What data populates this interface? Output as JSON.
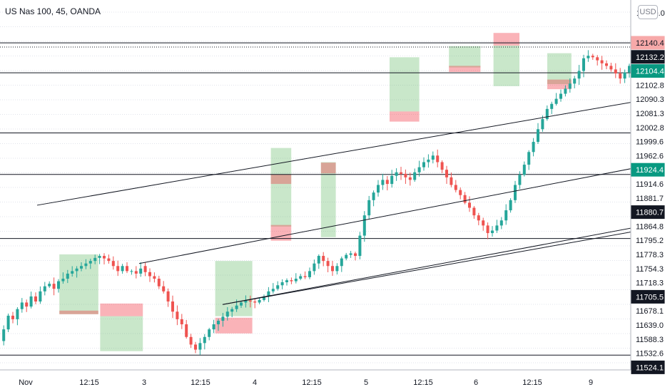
{
  "chart_data": {
    "type": "candlestick",
    "title": "US Nas 100, 45, OANDA",
    "currency": "USD",
    "x_ticks": [
      "Nov",
      "12:15",
      "3",
      "12:15",
      "4",
      "12:15",
      "5",
      "12:15",
      "6",
      "12:15",
      "9"
    ],
    "ylim": [
      11495,
      12225
    ],
    "y_ticks": [
      12200.0
    ],
    "price_labels": [
      {
        "value": 12140.4,
        "style": "sell"
      },
      {
        "value": 12132.2,
        "style": "last"
      },
      {
        "value": 12104.4,
        "style": "buy"
      },
      {
        "value": 12102.8,
        "style": "level"
      },
      {
        "value": 12090.3,
        "style": "level"
      },
      {
        "value": 12081.3,
        "style": "level"
      },
      {
        "value": 12002.8,
        "style": "level"
      },
      {
        "value": 11999.6,
        "style": "level"
      },
      {
        "value": 11962.6,
        "style": "level"
      },
      {
        "value": 11924.4,
        "style": "buy"
      },
      {
        "value": 11914.6,
        "style": "level"
      },
      {
        "value": 11881.7,
        "style": "level"
      },
      {
        "value": 11880.7,
        "style": "last"
      },
      {
        "value": 11864.8,
        "style": "level"
      },
      {
        "value": 11795.2,
        "style": "level"
      },
      {
        "value": 11778.3,
        "style": "level"
      },
      {
        "value": 11754.3,
        "style": "level"
      },
      {
        "value": 11718.3,
        "style": "level"
      },
      {
        "value": 11705.5,
        "style": "last"
      },
      {
        "value": 11678.1,
        "style": "level"
      },
      {
        "value": 11639.0,
        "style": "level"
      },
      {
        "value": 11588.3,
        "style": "level"
      },
      {
        "value": 11532.6,
        "style": "level"
      },
      {
        "value": 11524.1,
        "style": "last"
      }
    ],
    "horizontal_levels": [
      12140.4,
      12081.3,
      11962.6,
      11880.7,
      11754.3,
      11524.1
    ],
    "dotted_levels": [
      12132.2
    ],
    "channel_lines": [
      {
        "from": [
          2.0,
          11820
        ],
        "to": [
          72.0,
          12264
        ]
      },
      {
        "from": [
          7.5,
          11705
        ],
        "to": [
          85.0,
          12252
        ]
      },
      {
        "from": [
          12.0,
          11624
        ],
        "to": [
          88.0,
          12118
        ]
      },
      {
        "from": [
          12.0,
          11624
        ],
        "to": [
          92.0,
          12172
        ],
        "arrow": true
      }
    ],
    "zones": [
      {
        "x": [
          3.2,
          5.3
        ],
        "y": [
          11605,
          11723
        ],
        "kind": "profit"
      },
      {
        "x": [
          3.2,
          5.3
        ],
        "y": [
          11605,
          11612
        ],
        "kind": "loss"
      },
      {
        "x": [
          5.4,
          7.7
        ],
        "y": [
          11532,
          11601
        ],
        "kind": "profit"
      },
      {
        "x": [
          5.4,
          7.7
        ],
        "y": [
          11601,
          11626
        ],
        "kind": "loss"
      },
      {
        "x": [
          11.6,
          13.6
        ],
        "y": [
          11601,
          11710
        ],
        "kind": "profit"
      },
      {
        "x": [
          11.6,
          13.6
        ],
        "y": [
          11567,
          11598
        ],
        "kind": "loss"
      },
      {
        "x": [
          14.6,
          15.7
        ],
        "y": [
          11778,
          11933
        ],
        "kind": "profit"
      },
      {
        "x": [
          14.6,
          15.7
        ],
        "y": [
          11750,
          11781
        ],
        "kind": "loss"
      },
      {
        "x": [
          14.6,
          15.7
        ],
        "y": [
          11862,
          11881
        ],
        "kind": "loss"
      },
      {
        "x": [
          17.3,
          18.1
        ],
        "y": [
          11757,
          11905
        ],
        "kind": "profit"
      },
      {
        "x": [
          17.3,
          18.1
        ],
        "y": [
          11883,
          11904
        ],
        "kind": "loss"
      },
      {
        "x": [
          21.0,
          22.6
        ],
        "y": [
          12005,
          12112
        ],
        "kind": "profit"
      },
      {
        "x": [
          21.0,
          22.6
        ],
        "y": [
          11985,
          12005
        ],
        "kind": "loss"
      },
      {
        "x": [
          24.2,
          25.9
        ],
        "y": [
          12092,
          12134
        ],
        "kind": "profit"
      },
      {
        "x": [
          24.2,
          25.9
        ],
        "y": [
          12083,
          12095
        ],
        "kind": "loss"
      },
      {
        "x": [
          26.6,
          28.0
        ],
        "y": [
          12055,
          12135
        ],
        "kind": "profit"
      },
      {
        "x": [
          26.6,
          28.0
        ],
        "y": [
          12135,
          12160
        ],
        "kind": "loss"
      },
      {
        "x": [
          29.5,
          30.8
        ],
        "y": [
          12059,
          12120
        ],
        "kind": "profit"
      },
      {
        "x": [
          29.5,
          30.8
        ],
        "y": [
          12049,
          12068
        ],
        "kind": "loss"
      }
    ],
    "candles_segments": [
      {
        "start_price": 11552,
        "closes": [
          11575,
          11602,
          11595,
          11615,
          11628,
          11620,
          11640,
          11630,
          11650,
          11660,
          11665,
          11655,
          11670,
          11675,
          11685,
          11690,
          11695,
          11700,
          11705,
          11710,
          11716,
          11720,
          11715,
          11710,
          11700,
          11690,
          11700,
          11690,
          11690,
          11685,
          11695
        ]
      },
      {
        "start_price": 11700,
        "closes": [
          11688,
          11680,
          11675,
          11660,
          11650,
          11630,
          11610,
          11595,
          11585,
          11560,
          11545,
          11535,
          11548
        ]
      },
      {
        "start_price": 11548,
        "closes": [
          11560,
          11575,
          11585,
          11592,
          11600,
          11610,
          11615,
          11622,
          11628,
          11632,
          11630,
          11628,
          11633,
          11640,
          11650,
          11655,
          11662,
          11668,
          11672,
          11670,
          11675,
          11680,
          11678
        ]
      },
      {
        "start_price": 11678,
        "closes": [
          11690,
          11705,
          11720,
          11710,
          11700,
          11690,
          11700,
          11715,
          11722,
          11725,
          11720
        ]
      },
      {
        "start_price": 11720,
        "closes": [
          11760,
          11800,
          11830,
          11845,
          11860,
          11870,
          11862,
          11878,
          11885,
          11882,
          11875,
          11870,
          11885,
          11895,
          11905,
          11910,
          11918
        ]
      },
      {
        "start_price": 11918,
        "closes": [
          11905,
          11890,
          11875,
          11860,
          11850,
          11840,
          11825,
          11815,
          11800,
          11790,
          11780,
          11765,
          11770,
          11780,
          11790
        ]
      },
      {
        "start_price": 11790,
        "closes": [
          11810,
          11830,
          11860,
          11880,
          11900,
          11925,
          11945,
          11970,
          11990,
          12010,
          12020,
          12030,
          12040,
          12050,
          12060,
          12070,
          12085
        ]
      },
      {
        "start_price": 12085,
        "closes": [
          12110,
          12115,
          12112,
          12106,
          12100,
          12095,
          12088,
          12080,
          12070,
          12082
        ]
      },
      {
        "start_price": 12082,
        "closes": [
          12095,
          12110,
          12125,
          12138,
          12145,
          12150,
          12140,
          12130,
          12122,
          12112,
          12100,
          12085,
          12070,
          12058,
          12050
        ]
      },
      {
        "start_price": 12050,
        "closes": [
          12060,
          12072,
          12085,
          12098,
          12110,
          12120,
          12130,
          12135,
          12128
        ]
      }
    ]
  }
}
